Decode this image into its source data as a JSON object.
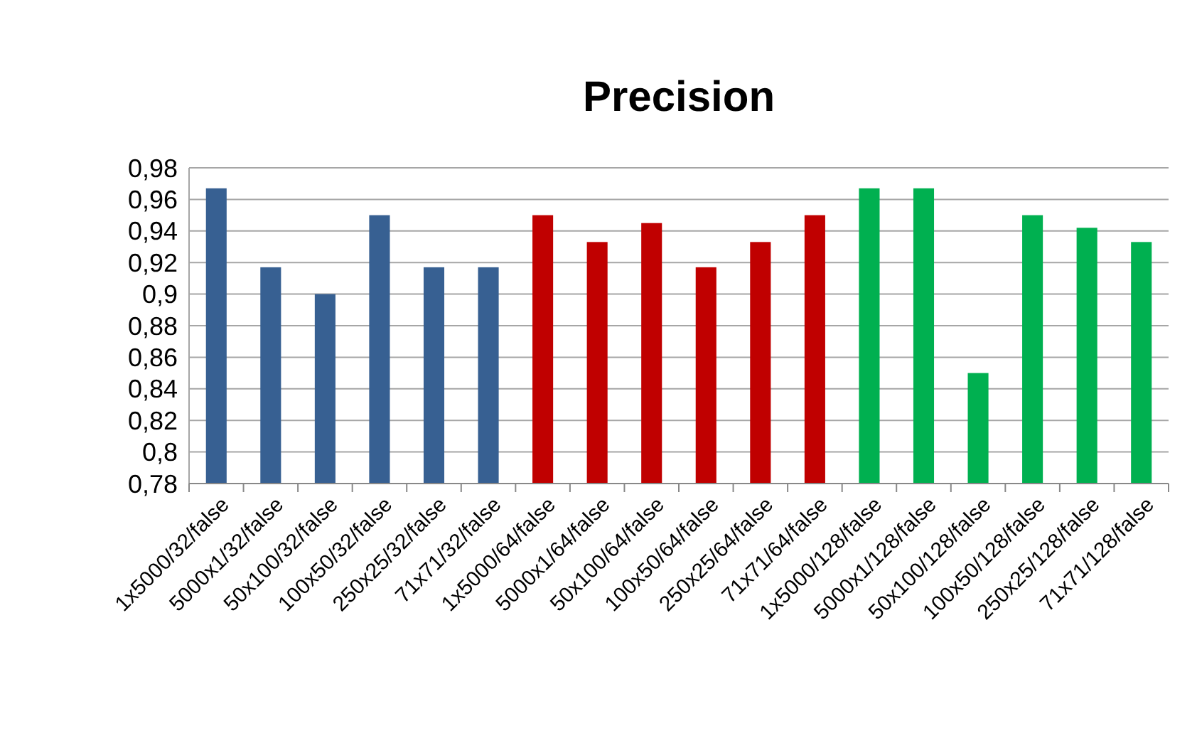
{
  "chart_data": {
    "type": "bar",
    "title": "Precision",
    "categories": [
      "1x5000/32/false",
      "5000x1/32/false",
      "50x100/32/false",
      "100x50/32/false",
      "250x25/32/false",
      "71x71/32/false",
      "1x5000/64/false",
      "5000x1/64/false",
      "50x100/64/false",
      "100x50/64/false",
      "250x25/64/false",
      "71x71/64/false",
      "1x5000/128/false",
      "5000x1/128/false",
      "50x100/128/false",
      "100x50/128/false",
      "250x25/128/false",
      "71x71/128/false"
    ],
    "values": [
      0.967,
      0.917,
      0.9,
      0.95,
      0.917,
      0.917,
      0.95,
      0.933,
      0.945,
      0.917,
      0.933,
      0.95,
      0.967,
      0.967,
      0.85,
      0.95,
      0.942,
      0.933
    ],
    "colors": [
      "#376092",
      "#376092",
      "#376092",
      "#376092",
      "#376092",
      "#376092",
      "#c00000",
      "#c00000",
      "#c00000",
      "#c00000",
      "#c00000",
      "#c00000",
      "#00b050",
      "#00b050",
      "#00b050",
      "#00b050",
      "#00b050",
      "#00b050"
    ],
    "ylim": [
      0.78,
      0.98
    ],
    "yticks": [
      {
        "value": 0.78,
        "label": "0,78"
      },
      {
        "value": 0.8,
        "label": "0,8"
      },
      {
        "value": 0.82,
        "label": "0,82"
      },
      {
        "value": 0.84,
        "label": "0,84"
      },
      {
        "value": 0.86,
        "label": "0,86"
      },
      {
        "value": 0.88,
        "label": "0,88"
      },
      {
        "value": 0.9,
        "label": "0,9"
      },
      {
        "value": 0.92,
        "label": "0,92"
      },
      {
        "value": 0.94,
        "label": "0,94"
      },
      {
        "value": 0.96,
        "label": "0,96"
      },
      {
        "value": 0.98,
        "label": "0,98"
      }
    ],
    "grid": "y"
  }
}
